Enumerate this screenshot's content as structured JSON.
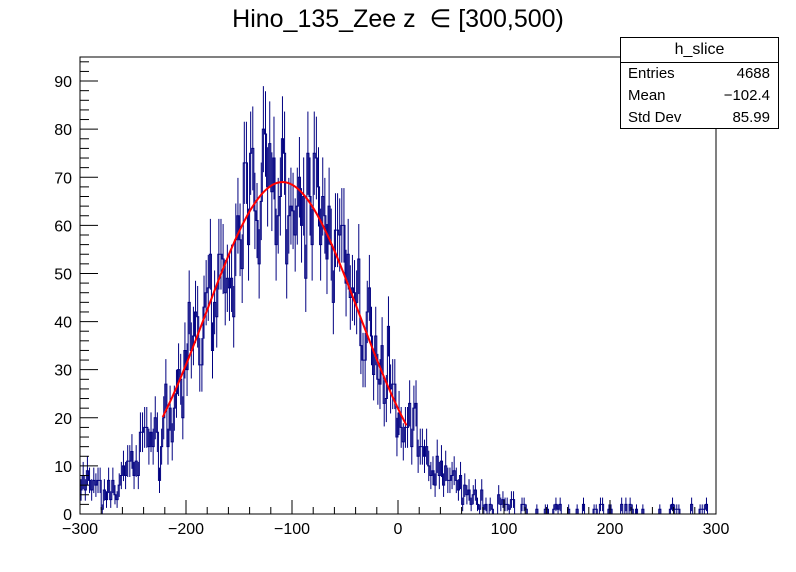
{
  "chart_data": {
    "type": "histogram",
    "title": "Hino_135_Zee z  ∈ [300,500)",
    "xlim": [
      -300,
      300
    ],
    "ylim": [
      0,
      95
    ],
    "x_ticks": [
      -300,
      -200,
      -100,
      0,
      100,
      200,
      300
    ],
    "y_ticks": [
      0,
      10,
      20,
      30,
      40,
      50,
      60,
      70,
      80,
      90
    ],
    "x_tick_labels": [
      "−300",
      "−200",
      "−100",
      "0",
      "100",
      "200",
      "300"
    ],
    "y_tick_labels": [
      "0",
      "10",
      "20",
      "30",
      "40",
      "50",
      "60",
      "70",
      "80",
      "90"
    ],
    "bin_width": 2,
    "bin_start": -300,
    "histogram_color": "#000080",
    "fit": {
      "type": "gaussian",
      "amplitude": 69,
      "mean": -109,
      "sigma": 72,
      "range": [
        -222,
        8
      ],
      "color": "#ff0000"
    },
    "stats_box": {
      "name": "h_slice",
      "entries_label": "Entries",
      "entries": "4688",
      "mean_label": "Mean",
      "mean": "−102.4",
      "stddev_label": "Std Dev",
      "stddev": "85.99"
    }
  }
}
